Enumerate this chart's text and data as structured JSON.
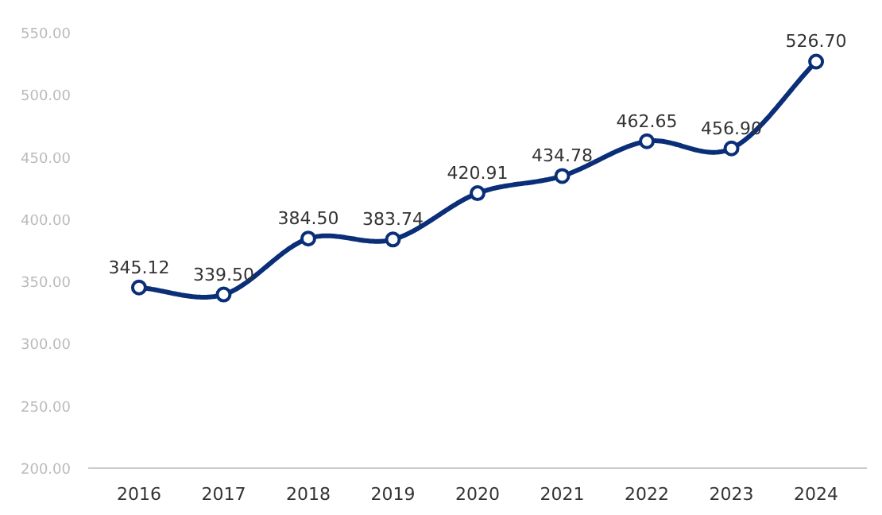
{
  "chart_data": {
    "type": "line",
    "categories": [
      "2016",
      "2017",
      "2018",
      "2019",
      "2020",
      "2021",
      "2022",
      "2023",
      "2024"
    ],
    "series": [
      {
        "color": "#0a2f78",
        "values": [
          345.12,
          339.5,
          384.5,
          383.74,
          420.91,
          434.78,
          462.65,
          456.9,
          526.7
        ],
        "value_labels": [
          "345.12",
          "339.50",
          "384.50",
          "383.74",
          "420.91",
          "434.78",
          "462.65",
          "456.90",
          "526.70"
        ]
      }
    ],
    "ylim": [
      200,
      550
    ],
    "yticks": [
      {
        "value": 200,
        "label": "200.00"
      },
      {
        "value": 250,
        "label": "250.00"
      },
      {
        "value": 300,
        "label": "300.00"
      },
      {
        "value": 350,
        "label": "350.00"
      },
      {
        "value": 400,
        "label": "400.00"
      },
      {
        "value": 450,
        "label": "450.00"
      },
      {
        "value": 500,
        "label": "500.00"
      },
      {
        "value": 550,
        "label": "550.00"
      }
    ],
    "grid": false,
    "marker": "circle",
    "line_style": "solid"
  }
}
